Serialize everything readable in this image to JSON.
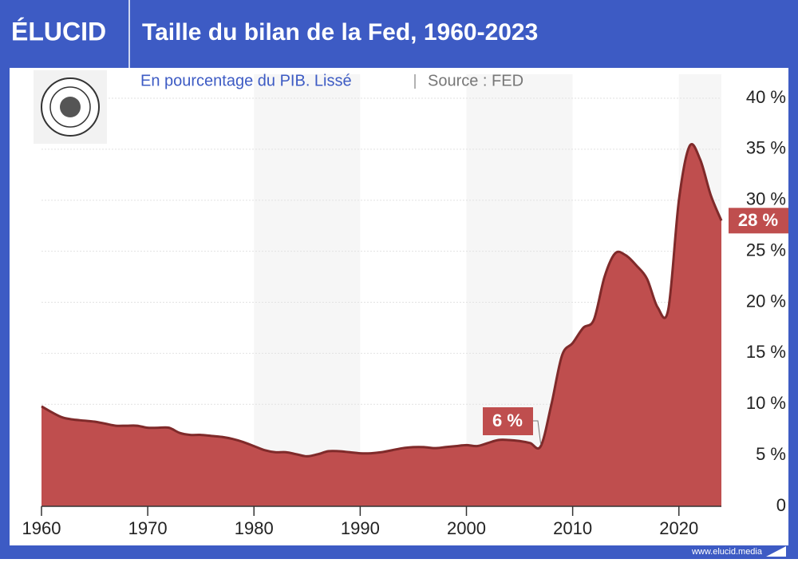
{
  "brand": "ÉLUCID",
  "footer": "www.elucid.media",
  "chart_data": {
    "type": "area",
    "title": "Taille du bilan de la Fed, 1960-2023",
    "subtitle": "En pourcentage du PIB. Lissé",
    "source": "Source : FED",
    "x": [
      1960,
      1961,
      1962,
      1963,
      1964,
      1965,
      1966,
      1967,
      1968,
      1969,
      1970,
      1971,
      1972,
      1973,
      1974,
      1975,
      1976,
      1977,
      1978,
      1979,
      1980,
      1981,
      1982,
      1983,
      1984,
      1985,
      1986,
      1987,
      1988,
      1989,
      1990,
      1991,
      1992,
      1993,
      1994,
      1995,
      1996,
      1997,
      1998,
      1999,
      2000,
      2001,
      2002,
      2003,
      2004,
      2005,
      2006,
      2007,
      2008,
      2009,
      2010,
      2011,
      2012,
      2013,
      2014,
      2015,
      2016,
      2017,
      2018,
      2019,
      2020,
      2021,
      2022,
      2023,
      2024
    ],
    "series": [
      {
        "name": "Bilan de la Fed",
        "color": "#bf4e4e",
        "values": [
          9.8,
          9.2,
          8.7,
          8.5,
          8.4,
          8.3,
          8.1,
          7.9,
          7.9,
          7.9,
          7.7,
          7.7,
          7.7,
          7.2,
          7.0,
          7.0,
          6.9,
          6.8,
          6.6,
          6.3,
          5.9,
          5.5,
          5.3,
          5.3,
          5.1,
          4.9,
          5.1,
          5.4,
          5.4,
          5.3,
          5.2,
          5.2,
          5.3,
          5.5,
          5.7,
          5.8,
          5.8,
          5.7,
          5.8,
          5.9,
          6.0,
          5.9,
          6.2,
          6.5,
          6.5,
          6.4,
          6.2,
          5.9,
          10.0,
          14.8,
          16.0,
          17.5,
          18.3,
          22.5,
          24.8,
          24.6,
          23.6,
          22.3,
          19.5,
          19.3,
          30.0,
          35.3,
          34.0,
          30.5,
          28.0
        ]
      }
    ],
    "xlim": [
      1960,
      2024
    ],
    "xticks": [
      1960,
      1970,
      1980,
      1990,
      2000,
      2010,
      2020
    ],
    "ylim": [
      0,
      40
    ],
    "yticks": [
      {
        "value": 0,
        "label": "0"
      },
      {
        "value": 5,
        "label": "5 %"
      },
      {
        "value": 10,
        "label": "10 %"
      },
      {
        "value": 15,
        "label": "15 %"
      },
      {
        "value": 20,
        "label": "20 %"
      },
      {
        "value": 25,
        "label": "25 %"
      },
      {
        "value": 30,
        "label": "30 %"
      },
      {
        "value": 35,
        "label": "35 %"
      },
      {
        "value": 40,
        "label": "40 %"
      }
    ],
    "grid": true,
    "annotations": [
      {
        "x": 2007,
        "y": 5.9,
        "label": "6 %"
      },
      {
        "x": 2024,
        "y": 28.0,
        "label": "28 %"
      }
    ]
  }
}
